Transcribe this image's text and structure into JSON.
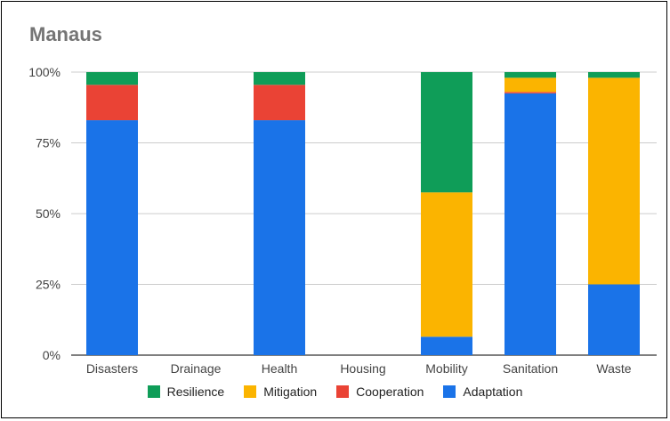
{
  "chart_data": {
    "type": "bar",
    "stacked": true,
    "title": "Manaus",
    "xlabel": "",
    "ylabel": "",
    "ylim": [
      0,
      100
    ],
    "yticks": [
      "0%",
      "25%",
      "50%",
      "75%",
      "100%"
    ],
    "ytick_values": [
      0,
      25,
      50,
      75,
      100
    ],
    "categories": [
      "Disasters",
      "Drainage",
      "Health",
      "Housing",
      "Mobility",
      "Sanitation",
      "Waste"
    ],
    "series": [
      {
        "name": "Adaptation",
        "color": "#1a73e8",
        "values": [
          83,
          0,
          83,
          0,
          6.5,
          92.5,
          25
        ]
      },
      {
        "name": "Cooperation",
        "color": "#ea4335",
        "values": [
          12.5,
          0,
          12.5,
          0,
          0,
          0.5,
          0
        ]
      },
      {
        "name": "Mitigation",
        "color": "#fbb400",
        "values": [
          0,
          0,
          0,
          0,
          51,
          5,
          73
        ]
      },
      {
        "name": "Resilience",
        "color": "#0f9d58",
        "values": [
          4.5,
          0,
          4.5,
          0,
          42.5,
          2,
          2
        ]
      }
    ],
    "legend": {
      "position": "bottom",
      "order": [
        "Resilience",
        "Mitigation",
        "Cooperation",
        "Adaptation"
      ]
    },
    "grid": true
  }
}
